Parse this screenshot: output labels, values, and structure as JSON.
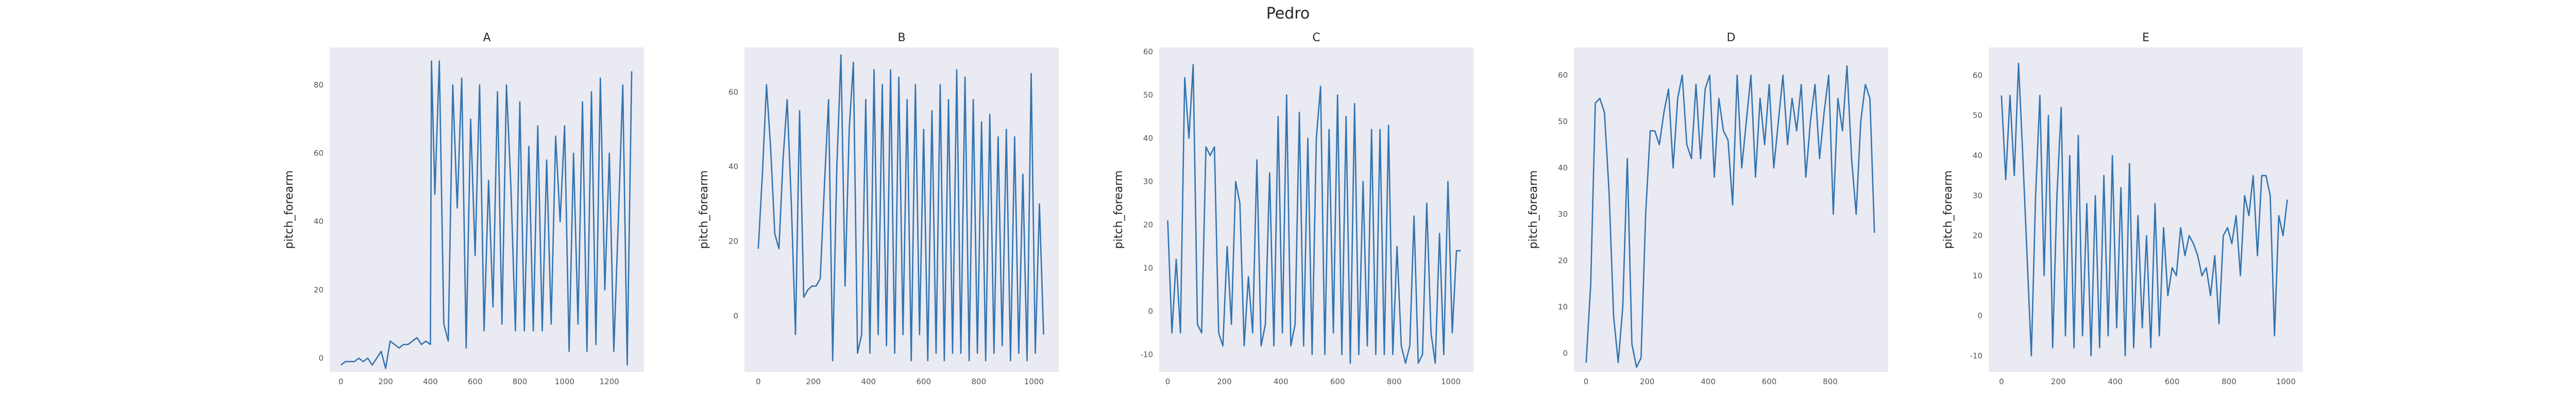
{
  "figure_title": "Pedro",
  "colors": {
    "panel_bg": "#eaeaf2",
    "line": "#3274b0",
    "text": "#262626"
  },
  "chart_data": [
    {
      "type": "line",
      "title": "A",
      "ylabel": "pitch_forearm",
      "xlabel": "",
      "xlim": [
        -50,
        1355
      ],
      "ylim": [
        -4,
        91
      ],
      "xticks": [
        0,
        200,
        400,
        600,
        800,
        1000,
        1200
      ],
      "yticks": [
        0,
        20,
        40,
        60,
        80
      ],
      "x": [
        0,
        20,
        40,
        60,
        80,
        100,
        120,
        140,
        160,
        180,
        200,
        220,
        240,
        260,
        280,
        300,
        320,
        340,
        360,
        380,
        400,
        405,
        420,
        440,
        460,
        480,
        500,
        520,
        540,
        560,
        580,
        600,
        620,
        640,
        660,
        680,
        700,
        720,
        740,
        760,
        780,
        800,
        820,
        840,
        860,
        880,
        900,
        920,
        940,
        960,
        980,
        1000,
        1020,
        1040,
        1060,
        1080,
        1100,
        1120,
        1140,
        1160,
        1180,
        1200,
        1220,
        1240,
        1260,
        1280,
        1300
      ],
      "values": [
        -2,
        -1,
        -1,
        -1,
        0,
        -1,
        0,
        -2,
        0,
        2,
        -3,
        5,
        4,
        3,
        4,
        4,
        5,
        6,
        4,
        5,
        4,
        87,
        48,
        87,
        10,
        5,
        80,
        44,
        82,
        3,
        70,
        30,
        80,
        8,
        52,
        15,
        78,
        10,
        80,
        50,
        8,
        75,
        8,
        62,
        8,
        68,
        8,
        58,
        10,
        65,
        40,
        68,
        2,
        60,
        10,
        75,
        2,
        78,
        4,
        82,
        20,
        60,
        2,
        40,
        80,
        -2,
        84
      ]
    },
    {
      "type": "line",
      "title": "B",
      "ylabel": "pitch_forearm",
      "xlabel": "",
      "xlim": [
        -50,
        1090
      ],
      "ylim": [
        -15,
        72
      ],
      "xticks": [
        0,
        200,
        400,
        600,
        800,
        1000
      ],
      "yticks": [
        0,
        20,
        40,
        60
      ],
      "x": [
        0,
        15,
        30,
        45,
        60,
        75,
        90,
        105,
        120,
        135,
        150,
        165,
        180,
        195,
        210,
        225,
        240,
        255,
        270,
        285,
        300,
        315,
        330,
        345,
        360,
        375,
        390,
        405,
        420,
        435,
        450,
        465,
        480,
        495,
        510,
        525,
        540,
        555,
        570,
        585,
        600,
        615,
        630,
        645,
        660,
        675,
        690,
        705,
        720,
        735,
        750,
        765,
        780,
        795,
        810,
        825,
        840,
        855,
        870,
        885,
        900,
        915,
        930,
        945,
        960,
        975,
        990,
        1005,
        1020,
        1035
      ],
      "values": [
        18,
        38,
        62,
        45,
        22,
        18,
        42,
        58,
        30,
        -5,
        55,
        5,
        7,
        8,
        8,
        10,
        35,
        58,
        -12,
        40,
        70,
        8,
        50,
        68,
        -10,
        -5,
        58,
        -10,
        66,
        -5,
        62,
        -8,
        66,
        -10,
        64,
        -5,
        58,
        -12,
        62,
        -5,
        50,
        -12,
        55,
        -10,
        62,
        -12,
        58,
        -10,
        66,
        -10,
        64,
        -12,
        58,
        -10,
        52,
        -12,
        54,
        -10,
        48,
        -8,
        50,
        -12,
        48,
        -10,
        38,
        -12,
        65,
        -10,
        30,
        -5
      ]
    },
    {
      "type": "line",
      "title": "C",
      "ylabel": "pitch_forearm",
      "xlabel": "",
      "xlim": [
        -30,
        1080
      ],
      "ylim": [
        -14,
        61
      ],
      "xticks": [
        0,
        200,
        400,
        600,
        800,
        1000
      ],
      "yticks": [
        -10,
        0,
        10,
        20,
        30,
        40,
        50,
        60
      ],
      "x": [
        0,
        15,
        30,
        45,
        60,
        75,
        90,
        105,
        120,
        135,
        150,
        165,
        180,
        195,
        210,
        225,
        240,
        255,
        270,
        285,
        300,
        315,
        330,
        345,
        360,
        375,
        390,
        405,
        420,
        435,
        450,
        465,
        480,
        495,
        510,
        525,
        540,
        555,
        570,
        585,
        600,
        615,
        630,
        645,
        660,
        675,
        690,
        705,
        720,
        735,
        750,
        765,
        780,
        795,
        810,
        825,
        840,
        855,
        870,
        885,
        900,
        915,
        930,
        945,
        960,
        975,
        990,
        1005,
        1020,
        1035
      ],
      "values": [
        21,
        -5,
        12,
        -5,
        54,
        40,
        57,
        -3,
        -5,
        38,
        36,
        38,
        -5,
        -8,
        15,
        -3,
        30,
        25,
        -8,
        8,
        -5,
        35,
        -8,
        -3,
        32,
        -8,
        45,
        -5,
        50,
        -8,
        -3,
        46,
        -8,
        40,
        -10,
        40,
        52,
        -10,
        42,
        -5,
        50,
        -10,
        45,
        -12,
        48,
        -10,
        30,
        -8,
        42,
        -10,
        42,
        -10,
        43,
        -10,
        15,
        -8,
        -12,
        -8,
        22,
        -12,
        -10,
        25,
        -5,
        -12,
        18,
        -10,
        30,
        -5,
        14,
        14
      ]
    },
    {
      "type": "line",
      "title": "D",
      "ylabel": "pitch_forearm",
      "xlabel": "",
      "xlim": [
        -40,
        990
      ],
      "ylim": [
        -4,
        66
      ],
      "xticks": [
        0,
        200,
        400,
        600,
        800
      ],
      "yticks": [
        0,
        10,
        20,
        30,
        40,
        50,
        60
      ],
      "x": [
        0,
        15,
        30,
        45,
        60,
        75,
        90,
        105,
        120,
        135,
        150,
        165,
        180,
        195,
        210,
        225,
        240,
        255,
        270,
        285,
        300,
        315,
        330,
        345,
        360,
        375,
        390,
        405,
        420,
        435,
        450,
        465,
        480,
        495,
        510,
        525,
        540,
        555,
        570,
        585,
        600,
        615,
        630,
        645,
        660,
        675,
        690,
        705,
        720,
        735,
        750,
        765,
        780,
        795,
        810,
        825,
        840,
        855,
        870,
        885,
        900,
        915,
        930,
        945
      ],
      "values": [
        -2,
        15,
        54,
        55,
        52,
        35,
        8,
        -2,
        10,
        42,
        2,
        -3,
        -1,
        30,
        48,
        48,
        45,
        52,
        57,
        40,
        55,
        60,
        45,
        42,
        58,
        42,
        57,
        60,
        38,
        55,
        48,
        46,
        32,
        60,
        40,
        50,
        60,
        38,
        55,
        45,
        58,
        40,
        50,
        60,
        45,
        55,
        48,
        58,
        38,
        50,
        58,
        42,
        52,
        60,
        30,
        55,
        48,
        62,
        42,
        30,
        50,
        58,
        55,
        26
      ]
    },
    {
      "type": "line",
      "title": "E",
      "ylabel": "pitch_forearm",
      "xlabel": "",
      "xlim": [
        -45,
        1060
      ],
      "ylim": [
        -14,
        67
      ],
      "xticks": [
        0,
        200,
        400,
        600,
        800,
        1000
      ],
      "yticks": [
        -10,
        0,
        10,
        20,
        30,
        40,
        50,
        60
      ],
      "x": [
        0,
        15,
        30,
        45,
        60,
        75,
        90,
        105,
        120,
        135,
        150,
        165,
        180,
        195,
        210,
        225,
        240,
        255,
        270,
        285,
        300,
        315,
        330,
        345,
        360,
        375,
        390,
        405,
        420,
        435,
        450,
        465,
        480,
        495,
        510,
        525,
        540,
        555,
        570,
        585,
        600,
        615,
        630,
        645,
        660,
        675,
        690,
        705,
        720,
        735,
        750,
        765,
        780,
        795,
        810,
        825,
        840,
        855,
        870,
        885,
        900,
        915,
        930,
        945,
        960,
        975,
        990,
        1005
      ],
      "values": [
        55,
        34,
        55,
        35,
        63,
        40,
        15,
        -10,
        30,
        55,
        10,
        50,
        -8,
        30,
        52,
        -5,
        40,
        -8,
        45,
        -5,
        28,
        -10,
        30,
        -8,
        35,
        -5,
        40,
        -3,
        32,
        -10,
        38,
        -8,
        25,
        -3,
        20,
        -8,
        28,
        -5,
        22,
        5,
        12,
        10,
        22,
        15,
        20,
        18,
        15,
        10,
        12,
        5,
        15,
        -2,
        20,
        22,
        18,
        25,
        10,
        30,
        25,
        35,
        15,
        35,
        35,
        30,
        -5,
        25,
        20,
        29
      ]
    }
  ]
}
